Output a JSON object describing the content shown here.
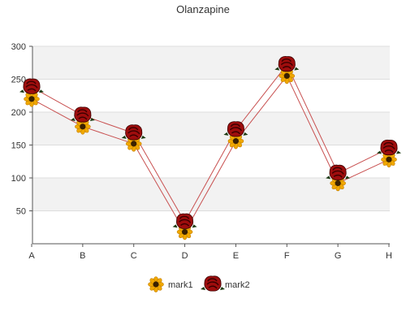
{
  "chart_data": {
    "type": "line",
    "title": "Olanzapine",
    "categories": [
      "A",
      "B",
      "C",
      "D",
      "E",
      "F",
      "G",
      "H"
    ],
    "ylim": [
      0,
      300
    ],
    "yticks": [
      50,
      100,
      150,
      200,
      250,
      300
    ],
    "grid": true,
    "legend_position": "bottom",
    "series": [
      {
        "name": "mark1",
        "values": [
          220,
          178,
          152,
          18,
          156,
          255,
          92,
          128
        ],
        "marker": "sunflower-icon"
      },
      {
        "name": "mark2",
        "values": [
          238,
          195,
          168,
          33,
          173,
          272,
          107,
          145
        ],
        "marker": "rose-icon"
      }
    ],
    "colors": {
      "line": "#c85050",
      "band": "#f2f2f2",
      "grid": "#dddddd",
      "axis": "#555555",
      "sunflower_petal": "#f0a800",
      "sunflower_center": "#3a2100",
      "rose": "#9e0d0d",
      "rose_dark": "#3a0000"
    }
  }
}
